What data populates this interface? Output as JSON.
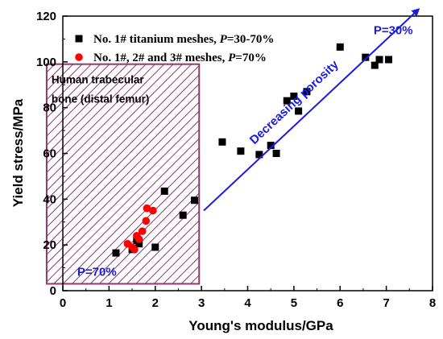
{
  "chart_data": {
    "type": "scatter",
    "xlabel": "Young's modulus/GPa",
    "ylabel": "Yield stress/MPa",
    "xlim": [
      0,
      8
    ],
    "ylim": [
      0,
      120
    ],
    "xticks": [
      "0",
      "1",
      "2",
      "3",
      "4",
      "5",
      "6",
      "7",
      "8"
    ],
    "yticks": [
      "0",
      "20",
      "40",
      "60",
      "80",
      "100",
      "120"
    ],
    "grid": false,
    "legend_position": "top-left",
    "series": [
      {
        "name_prefix": "No. 1# titanium meshes, ",
        "name_italic": "P",
        "name_suffix": "=30-70%",
        "marker": "square",
        "color": "#000000",
        "points": [
          {
            "x": 1.15,
            "y": 16.5
          },
          {
            "x": 1.5,
            "y": 18
          },
          {
            "x": 1.6,
            "y": 22
          },
          {
            "x": 1.65,
            "y": 20.5
          },
          {
            "x": 2.0,
            "y": 19
          },
          {
            "x": 2.2,
            "y": 43.5
          },
          {
            "x": 2.6,
            "y": 33
          },
          {
            "x": 2.85,
            "y": 39.5
          },
          {
            "x": 3.45,
            "y": 65
          },
          {
            "x": 3.85,
            "y": 61
          },
          {
            "x": 4.25,
            "y": 59.5
          },
          {
            "x": 4.5,
            "y": 63.5
          },
          {
            "x": 4.62,
            "y": 60
          },
          {
            "x": 4.85,
            "y": 83
          },
          {
            "x": 5.0,
            "y": 85
          },
          {
            "x": 5.1,
            "y": 78.5
          },
          {
            "x": 5.28,
            "y": 87
          },
          {
            "x": 6.0,
            "y": 106.5
          },
          {
            "x": 6.55,
            "y": 102
          },
          {
            "x": 6.75,
            "y": 98.5
          },
          {
            "x": 6.85,
            "y": 101
          },
          {
            "x": 7.05,
            "y": 101
          }
        ]
      },
      {
        "name_prefix": "No. 1#, 2# and 3# meshes, ",
        "name_italic": "P",
        "name_suffix": "=70%",
        "marker": "circle",
        "color": "#ff0000",
        "points": [
          {
            "x": 1.4,
            "y": 20.5
          },
          {
            "x": 1.5,
            "y": 19
          },
          {
            "x": 1.55,
            "y": 18
          },
          {
            "x": 1.6,
            "y": 24
          },
          {
            "x": 1.65,
            "y": 22.5
          },
          {
            "x": 1.72,
            "y": 26
          },
          {
            "x": 1.8,
            "y": 30.5
          },
          {
            "x": 1.82,
            "y": 36
          },
          {
            "x": 1.95,
            "y": 35
          }
        ]
      }
    ],
    "regions": [
      {
        "label_line1": "Human trabecular",
        "label_line2": "bone (distal femur)",
        "inner_label": "P=70%",
        "x0": -0.35,
        "x1": 2.95,
        "y0": 3,
        "y1": 99,
        "color": "#8b3a6e"
      }
    ],
    "annotations": [
      {
        "text": "Decreasing porosity",
        "arrow_from": {
          "x": 3.05,
          "y": 35
        },
        "arrow_to": {
          "x": 7.7,
          "y": 123
        },
        "color": "#1a1ae6"
      },
      {
        "text": "P=30%",
        "at": {
          "x": 7.15,
          "y": 112
        },
        "color": "#1a1ae6"
      }
    ]
  }
}
